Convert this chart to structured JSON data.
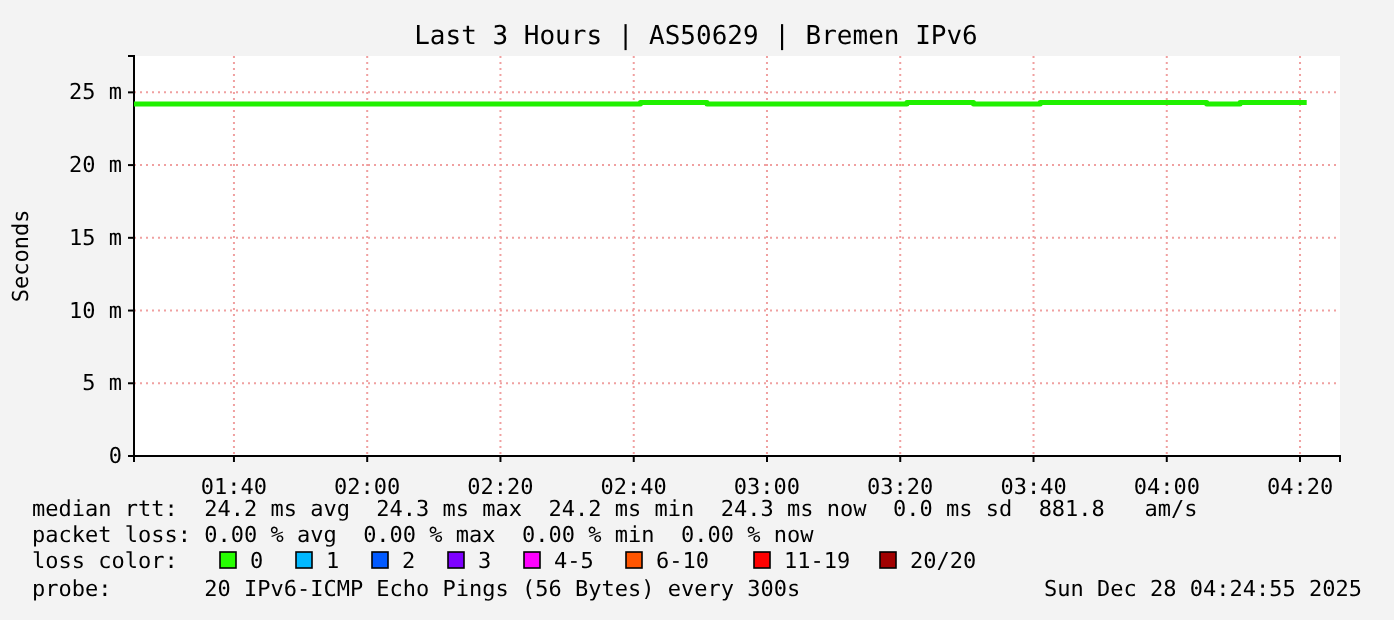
{
  "chart_data": {
    "type": "step",
    "title": "Last 3 Hours | AS50629 | Bremen IPv6",
    "ylabel": "Seconds",
    "x": [
      1.4167,
      2.6833,
      2.85,
      3.35,
      3.5167,
      3.6833,
      4.1,
      4.1833,
      4.35
    ],
    "series": [
      {
        "color": "#20f000",
        "values": [
          24.2,
          24.3,
          24.2,
          24.3,
          24.2,
          24.3,
          24.2,
          24.3,
          24.3
        ]
      }
    ],
    "xlim": [
      1.4167,
      4.4333
    ],
    "xticks": [
      {
        "value": 1.6667,
        "label": "01:40"
      },
      {
        "value": 2,
        "label": "02:00"
      },
      {
        "value": 2.3333,
        "label": "02:20"
      },
      {
        "value": 2.6667,
        "label": "02:40"
      },
      {
        "value": 3,
        "label": "03:00"
      },
      {
        "value": 3.3333,
        "label": "03:20"
      },
      {
        "value": 3.6667,
        "label": "03:40"
      },
      {
        "value": 4,
        "label": "04:00"
      },
      {
        "value": 4.3333,
        "label": "04:20"
      }
    ],
    "ylim": [
      0,
      27.5
    ],
    "yticks": [
      0,
      {
        "value": 5,
        "label": "5 m"
      },
      {
        "value": 10,
        "label": "10 m"
      },
      {
        "value": 15,
        "label": "15 m"
      },
      {
        "value": 20,
        "label": "20 m"
      },
      {
        "value": 25,
        "label": "25 m"
      }
    ],
    "grid": true,
    "line_style": "solid",
    "marker": "none",
    "annotations": [
      "median rtt:  24.2 ms avg  24.3 ms max  24.2 ms min  24.3 ms now  0.0 ms sd  881.8   am/s",
      "packet loss: 0.00 % avg  0.00 % max  0.00 % min  0.00 % now",
      "loss color:",
      "0",
      "1",
      "2",
      "3",
      "4-5",
      "6-10",
      "11-19",
      "20/20",
      "probe:       20 IPv6-ICMP Echo Pings (56 Bytes) every 300s",
      "Sun Dec 28 04:24:55 2025"
    ]
  }
}
